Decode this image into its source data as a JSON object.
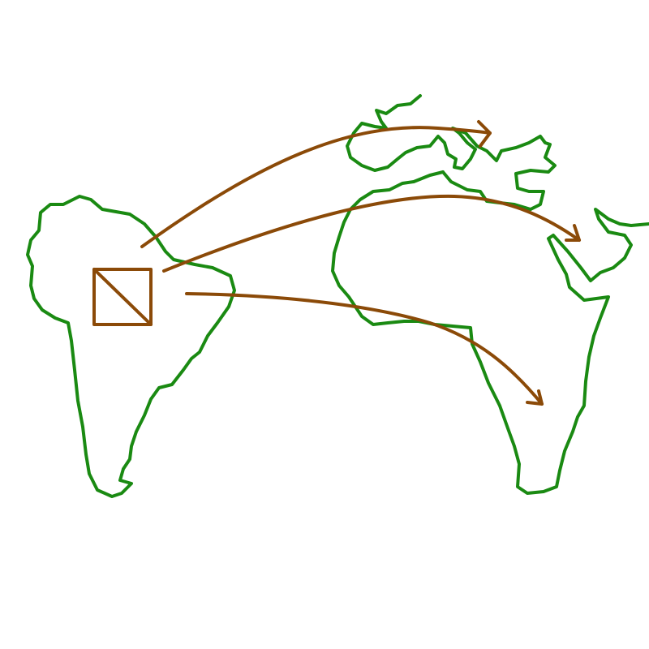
{
  "colors": {
    "background": "#ffffff",
    "landmass_outline": "#1a8a12",
    "flow_arrows": "#8b4a08",
    "source_marker": "#8b4a08"
  },
  "map": {
    "landmasses": [
      "south-america",
      "europe",
      "africa",
      "arabian-peninsula"
    ],
    "source": {
      "landmass": "south-america",
      "marker_icon": "box-with-diagonal-icon"
    },
    "flows": [
      {
        "from": "south-america",
        "to": "europe"
      },
      {
        "from": "south-america",
        "to": "arabian-peninsula"
      },
      {
        "from": "south-america",
        "to": "africa"
      }
    ]
  }
}
